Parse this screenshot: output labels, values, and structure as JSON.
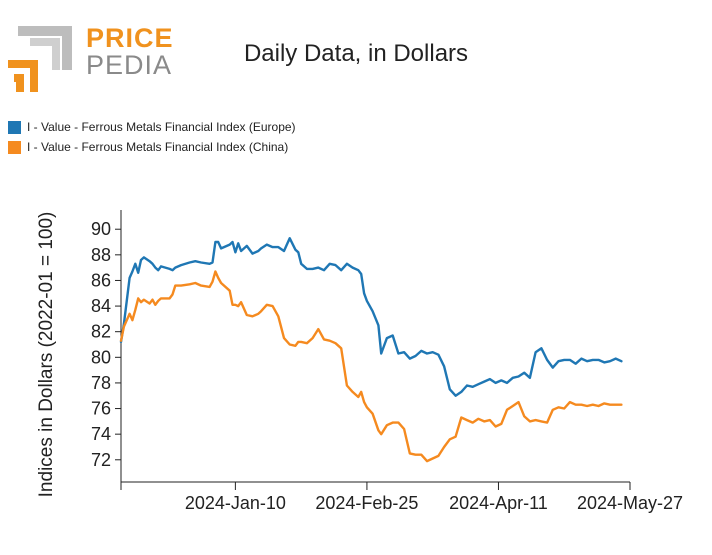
{
  "brand": {
    "price": "PRICE",
    "pedia": "PEDIA",
    "orange": "#f0921e",
    "gray": "#a9a9a9"
  },
  "chart_data": {
    "type": "line",
    "title": "Daily Data, in Dollars",
    "xlabel": "",
    "ylabel": "Indices in Dollars (2022-01 = 100)",
    "ylim": [
      70.5,
      91.5
    ],
    "yticks": [
      72,
      74,
      76,
      78,
      80,
      82,
      84,
      86,
      88,
      90
    ],
    "x_range": [
      "2023-12-01",
      "2024-05-27"
    ],
    "xticks": [
      {
        "date": "2024-01-10",
        "label": "2024-Jan-10"
      },
      {
        "date": "2024-02-25",
        "label": "2024-Feb-25"
      },
      {
        "date": "2024-04-11",
        "label": "2024-Apr-11"
      },
      {
        "date": "2024-05-27",
        "label": "2024-May-27"
      }
    ],
    "legend_position": "top-left",
    "series": [
      {
        "name": "I - Value - Ferrous Metals Financial Index (Europe)",
        "color": "#1f77b4",
        "x": [
          "2023-12-01",
          "2023-12-02",
          "2023-12-04",
          "2023-12-05",
          "2023-12-06",
          "2023-12-07",
          "2023-12-08",
          "2023-12-09",
          "2023-12-11",
          "2023-12-12",
          "2023-12-13",
          "2023-12-14",
          "2023-12-15",
          "2023-12-18",
          "2023-12-19",
          "2023-12-20",
          "2023-12-22",
          "2023-12-25",
          "2023-12-27",
          "2023-12-29",
          "2024-01-01",
          "2024-01-02",
          "2024-01-03",
          "2024-01-04",
          "2024-01-05",
          "2024-01-08",
          "2024-01-09",
          "2024-01-10",
          "2024-01-11",
          "2024-01-12",
          "2024-01-14",
          "2024-01-16",
          "2024-01-18",
          "2024-01-19",
          "2024-01-21",
          "2024-01-23",
          "2024-01-25",
          "2024-01-27",
          "2024-01-29",
          "2024-01-31",
          "2024-02-01",
          "2024-02-02",
          "2024-02-04",
          "2024-02-06",
          "2024-02-08",
          "2024-02-10",
          "2024-02-12",
          "2024-02-14",
          "2024-02-16",
          "2024-02-18",
          "2024-02-20",
          "2024-02-22",
          "2024-02-23",
          "2024-02-24",
          "2024-02-25",
          "2024-02-27",
          "2024-02-29",
          "2024-03-01",
          "2024-03-03",
          "2024-03-05",
          "2024-03-07",
          "2024-03-09",
          "2024-03-11",
          "2024-03-13",
          "2024-03-15",
          "2024-03-17",
          "2024-03-19",
          "2024-03-21",
          "2024-03-23",
          "2024-03-25",
          "2024-03-27",
          "2024-03-29",
          "2024-03-31",
          "2024-04-02",
          "2024-04-04",
          "2024-04-06",
          "2024-04-08",
          "2024-04-10",
          "2024-04-12",
          "2024-04-14",
          "2024-04-16",
          "2024-04-18",
          "2024-04-20",
          "2024-04-22",
          "2024-04-24",
          "2024-04-26",
          "2024-04-28",
          "2024-04-30",
          "2024-05-02",
          "2024-05-04",
          "2024-05-06",
          "2024-05-08",
          "2024-05-10",
          "2024-05-12",
          "2024-05-14",
          "2024-05-16",
          "2024-05-18",
          "2024-05-20",
          "2024-05-22",
          "2024-05-24"
        ],
        "values": [
          81.2,
          82.6,
          86.2,
          86.7,
          87.3,
          86.6,
          87.6,
          87.8,
          87.5,
          87.3,
          87.0,
          86.8,
          87.1,
          86.9,
          86.8,
          87.0,
          87.2,
          87.4,
          87.5,
          87.4,
          87.3,
          87.4,
          89.0,
          89.0,
          88.5,
          88.8,
          89.0,
          88.2,
          88.9,
          88.3,
          88.7,
          88.1,
          88.3,
          88.5,
          88.8,
          88.6,
          88.6,
          88.3,
          89.3,
          88.4,
          88.2,
          87.3,
          86.9,
          86.9,
          87.0,
          86.8,
          87.3,
          87.2,
          86.8,
          87.3,
          87.0,
          86.8,
          86.5,
          85.0,
          84.4,
          83.6,
          82.5,
          80.3,
          81.5,
          81.7,
          80.3,
          80.4,
          79.9,
          80.1,
          80.5,
          80.3,
          80.4,
          80.2,
          79.3,
          77.5,
          77.0,
          77.3,
          77.8,
          77.7,
          77.9,
          78.1,
          78.3,
          78.0,
          78.2,
          78.0,
          78.4,
          78.5,
          78.8,
          78.4,
          80.4,
          80.7,
          79.8,
          79.2,
          79.7,
          79.8,
          79.8,
          79.5,
          79.9,
          79.7,
          79.8,
          79.8,
          79.6,
          79.7,
          79.9,
          79.7
        ]
      },
      {
        "name": "I - Value - Ferrous Metals Financial Index (China)",
        "color": "#f58a1f",
        "x": [
          "2023-12-01",
          "2023-12-02",
          "2023-12-04",
          "2023-12-05",
          "2023-12-06",
          "2023-12-07",
          "2023-12-08",
          "2023-12-09",
          "2023-12-11",
          "2023-12-12",
          "2023-12-13",
          "2023-12-14",
          "2023-12-15",
          "2023-12-18",
          "2023-12-19",
          "2023-12-20",
          "2023-12-22",
          "2023-12-25",
          "2023-12-27",
          "2023-12-29",
          "2024-01-01",
          "2024-01-02",
          "2024-01-03",
          "2024-01-04",
          "2024-01-05",
          "2024-01-08",
          "2024-01-09",
          "2024-01-10",
          "2024-01-11",
          "2024-01-12",
          "2024-01-14",
          "2024-01-16",
          "2024-01-18",
          "2024-01-19",
          "2024-01-21",
          "2024-01-23",
          "2024-01-25",
          "2024-01-27",
          "2024-01-29",
          "2024-01-31",
          "2024-02-01",
          "2024-02-02",
          "2024-02-04",
          "2024-02-06",
          "2024-02-08",
          "2024-02-10",
          "2024-02-12",
          "2024-02-14",
          "2024-02-16",
          "2024-02-18",
          "2024-02-20",
          "2024-02-22",
          "2024-02-23",
          "2024-02-24",
          "2024-02-25",
          "2024-02-27",
          "2024-02-29",
          "2024-03-01",
          "2024-03-03",
          "2024-03-05",
          "2024-03-07",
          "2024-03-09",
          "2024-03-11",
          "2024-03-13",
          "2024-03-15",
          "2024-03-17",
          "2024-03-19",
          "2024-03-21",
          "2024-03-23",
          "2024-03-25",
          "2024-03-27",
          "2024-03-29",
          "2024-03-31",
          "2024-04-02",
          "2024-04-04",
          "2024-04-06",
          "2024-04-08",
          "2024-04-10",
          "2024-04-12",
          "2024-04-14",
          "2024-04-16",
          "2024-04-18",
          "2024-04-20",
          "2024-04-22",
          "2024-04-24",
          "2024-04-26",
          "2024-04-28",
          "2024-04-30",
          "2024-05-02",
          "2024-05-04",
          "2024-05-06",
          "2024-05-08",
          "2024-05-10",
          "2024-05-12",
          "2024-05-14",
          "2024-05-16",
          "2024-05-18",
          "2024-05-20",
          "2024-05-22",
          "2024-05-24"
        ],
        "values": [
          81.3,
          82.4,
          83.4,
          82.9,
          83.7,
          84.6,
          84.3,
          84.5,
          84.2,
          84.5,
          84.1,
          84.4,
          84.6,
          84.6,
          84.9,
          85.6,
          85.6,
          85.7,
          85.8,
          85.6,
          85.5,
          85.9,
          86.7,
          86.2,
          85.8,
          85.2,
          84.1,
          84.1,
          84.0,
          84.3,
          83.3,
          83.2,
          83.4,
          83.6,
          84.1,
          84.0,
          83.2,
          81.5,
          81.0,
          80.9,
          81.2,
          81.2,
          81.1,
          81.5,
          82.2,
          81.4,
          81.3,
          81.1,
          80.7,
          77.8,
          77.3,
          76.9,
          77.3,
          76.5,
          76.1,
          75.6,
          74.3,
          74.0,
          74.7,
          74.9,
          74.9,
          74.4,
          72.5,
          72.4,
          72.4,
          71.9,
          72.1,
          72.3,
          73.0,
          73.6,
          73.8,
          75.3,
          75.1,
          74.9,
          75.2,
          75.0,
          75.1,
          74.6,
          74.8,
          75.9,
          76.2,
          76.5,
          75.4,
          75.0,
          75.1,
          75.0,
          74.9,
          75.9,
          76.1,
          76.0,
          76.5,
          76.3,
          76.3,
          76.2,
          76.3,
          76.2,
          76.4,
          76.3,
          76.3,
          76.3
        ]
      }
    ]
  }
}
